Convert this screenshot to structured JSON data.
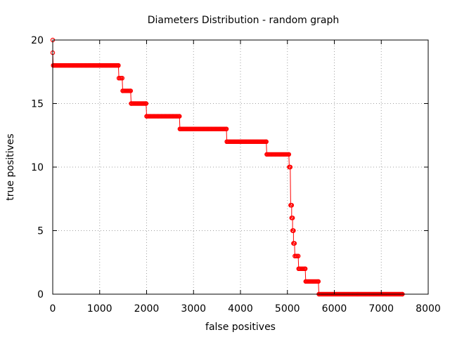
{
  "chart_data": {
    "type": "line",
    "title": "Diameters Distribution - random graph",
    "xlabel": "false positives",
    "ylabel": "true positives",
    "xlim": [
      0,
      8000
    ],
    "ylim": [
      0,
      20
    ],
    "x_ticks": [
      "0",
      "1000",
      "2000",
      "3000",
      "4000",
      "5000",
      "6000",
      "7000",
      "8000"
    ],
    "y_ticks": [
      "0",
      "5",
      "10",
      "15",
      "20"
    ],
    "grid": true,
    "series_color": "#ff0000",
    "series": [
      {
        "points": [
          [
            0,
            20
          ],
          [
            0,
            19
          ],
          [
            10,
            18
          ],
          [
            1400,
            18
          ],
          [
            1410,
            17
          ],
          [
            1480,
            17
          ],
          [
            1490,
            16
          ],
          [
            1660,
            16
          ],
          [
            1670,
            15
          ],
          [
            1990,
            15
          ],
          [
            2000,
            14
          ],
          [
            2700,
            14
          ],
          [
            2710,
            13
          ],
          [
            3700,
            13
          ],
          [
            3710,
            12
          ],
          [
            4550,
            12
          ],
          [
            4560,
            11
          ],
          [
            5030,
            11
          ],
          [
            5040,
            10
          ],
          [
            5060,
            10
          ],
          [
            5070,
            7
          ],
          [
            5090,
            7
          ],
          [
            5090,
            6
          ],
          [
            5110,
            6
          ],
          [
            5110,
            5
          ],
          [
            5130,
            5
          ],
          [
            5130,
            4
          ],
          [
            5150,
            4
          ],
          [
            5160,
            3
          ],
          [
            5230,
            3
          ],
          [
            5240,
            2
          ],
          [
            5380,
            2
          ],
          [
            5390,
            1
          ],
          [
            5660,
            1
          ],
          [
            5670,
            0
          ],
          [
            7450,
            0
          ]
        ]
      }
    ]
  }
}
